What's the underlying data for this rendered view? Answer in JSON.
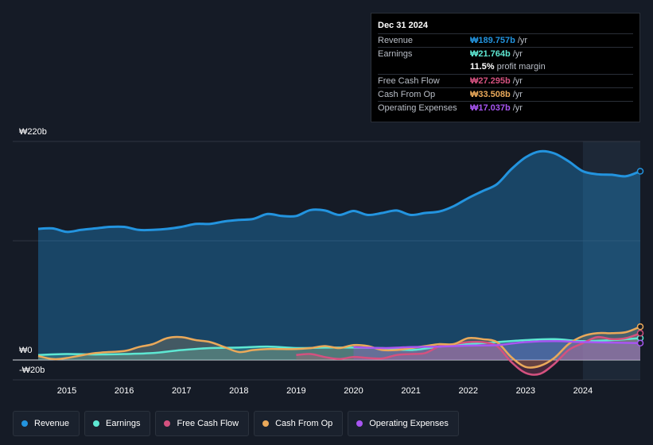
{
  "chart_data": {
    "type": "line",
    "title": "",
    "xlabel": "",
    "ylabel": "",
    "currency": "₩",
    "y_axis_labels": [
      "₩220b",
      "₩0",
      "-₩20b"
    ],
    "ylim": [
      -20,
      220
    ],
    "xlim": [
      2014.5,
      2025.0
    ],
    "x_ticks": [
      "2015",
      "2016",
      "2017",
      "2018",
      "2019",
      "2020",
      "2021",
      "2022",
      "2023",
      "2024"
    ],
    "x_tick_values": [
      2015,
      2016,
      2017,
      2018,
      2019,
      2020,
      2021,
      2022,
      2023,
      2024
    ],
    "highlight_start": 2024.0,
    "series": [
      {
        "name": "Revenue",
        "color": "#2394df",
        "points": [
          [
            2014.5,
            132
          ],
          [
            2014.75,
            132.5
          ],
          [
            2015.0,
            129
          ],
          [
            2015.25,
            131
          ],
          [
            2015.5,
            132.5
          ],
          [
            2015.75,
            134
          ],
          [
            2016.0,
            134
          ],
          [
            2016.25,
            131
          ],
          [
            2016.5,
            131
          ],
          [
            2016.75,
            132
          ],
          [
            2017.0,
            134
          ],
          [
            2017.25,
            137
          ],
          [
            2017.5,
            137
          ],
          [
            2017.75,
            139.5
          ],
          [
            2018.0,
            141
          ],
          [
            2018.25,
            142
          ],
          [
            2018.5,
            147
          ],
          [
            2018.75,
            145
          ],
          [
            2019.0,
            145
          ],
          [
            2019.25,
            151
          ],
          [
            2019.5,
            150.5
          ],
          [
            2019.75,
            146
          ],
          [
            2020.0,
            150
          ],
          [
            2020.25,
            146
          ],
          [
            2020.5,
            148
          ],
          [
            2020.75,
            150.5
          ],
          [
            2021.0,
            146
          ],
          [
            2021.25,
            148
          ],
          [
            2021.5,
            149.5
          ],
          [
            2021.75,
            155
          ],
          [
            2022.0,
            163
          ],
          [
            2022.25,
            170
          ],
          [
            2022.5,
            177
          ],
          [
            2022.75,
            192
          ],
          [
            2023.0,
            204
          ],
          [
            2023.25,
            210
          ],
          [
            2023.5,
            208
          ],
          [
            2023.75,
            200
          ],
          [
            2024.0,
            190
          ],
          [
            2024.25,
            187
          ],
          [
            2024.5,
            186.5
          ],
          [
            2024.75,
            185
          ],
          [
            2025.0,
            190
          ]
        ]
      },
      {
        "name": "Earnings",
        "color": "#5ee8d3",
        "points": [
          [
            2014.5,
            5
          ],
          [
            2015.0,
            6
          ],
          [
            2015.5,
            5.5
          ],
          [
            2016.0,
            6
          ],
          [
            2016.5,
            7
          ],
          [
            2017.0,
            10
          ],
          [
            2017.5,
            12
          ],
          [
            2018.0,
            12.5
          ],
          [
            2018.5,
            13.5
          ],
          [
            2019.0,
            12
          ],
          [
            2019.5,
            12.5
          ],
          [
            2020.0,
            12.5
          ],
          [
            2020.5,
            12
          ],
          [
            2021.0,
            10
          ],
          [
            2021.5,
            13.5
          ],
          [
            2022.0,
            16
          ],
          [
            2022.5,
            18
          ],
          [
            2023.0,
            20
          ],
          [
            2023.5,
            21
          ],
          [
            2024.0,
            19
          ],
          [
            2024.5,
            20
          ],
          [
            2025.0,
            22
          ]
        ]
      },
      {
        "name": "Free Cash Flow",
        "color": "#d4517f",
        "points": [
          [
            2019.0,
            5
          ],
          [
            2019.25,
            6
          ],
          [
            2019.5,
            3
          ],
          [
            2019.75,
            1
          ],
          [
            2020.0,
            3
          ],
          [
            2020.25,
            2
          ],
          [
            2020.5,
            1.5
          ],
          [
            2020.75,
            5
          ],
          [
            2021.0,
            6
          ],
          [
            2021.25,
            7
          ],
          [
            2021.5,
            14
          ],
          [
            2021.75,
            16
          ],
          [
            2022.0,
            18
          ],
          [
            2022.25,
            18
          ],
          [
            2022.5,
            14
          ],
          [
            2022.75,
            -2
          ],
          [
            2023.0,
            -13
          ],
          [
            2023.25,
            -14
          ],
          [
            2023.5,
            -4
          ],
          [
            2023.75,
            10
          ],
          [
            2024.0,
            17
          ],
          [
            2024.25,
            23
          ],
          [
            2024.5,
            21
          ],
          [
            2024.75,
            22
          ],
          [
            2025.0,
            27
          ]
        ]
      },
      {
        "name": "Cash From Op",
        "color": "#eaa95a",
        "points": [
          [
            2014.5,
            4
          ],
          [
            2014.75,
            1
          ],
          [
            2015.0,
            2
          ],
          [
            2015.5,
            7
          ],
          [
            2016.0,
            9
          ],
          [
            2016.25,
            13
          ],
          [
            2016.5,
            16
          ],
          [
            2016.75,
            22
          ],
          [
            2017.0,
            23
          ],
          [
            2017.25,
            20
          ],
          [
            2017.5,
            18
          ],
          [
            2017.75,
            13
          ],
          [
            2018.0,
            8
          ],
          [
            2018.25,
            10
          ],
          [
            2018.5,
            11
          ],
          [
            2018.75,
            11
          ],
          [
            2019.0,
            11
          ],
          [
            2019.25,
            12
          ],
          [
            2019.5,
            14
          ],
          [
            2019.75,
            12
          ],
          [
            2020.0,
            15
          ],
          [
            2020.25,
            14
          ],
          [
            2020.5,
            10
          ],
          [
            2020.75,
            10
          ],
          [
            2021.0,
            12
          ],
          [
            2021.25,
            14
          ],
          [
            2021.5,
            16
          ],
          [
            2021.75,
            16
          ],
          [
            2022.0,
            22
          ],
          [
            2022.25,
            21
          ],
          [
            2022.5,
            18
          ],
          [
            2022.75,
            3
          ],
          [
            2023.0,
            -7
          ],
          [
            2023.25,
            -6
          ],
          [
            2023.5,
            2
          ],
          [
            2023.75,
            16
          ],
          [
            2024.0,
            24
          ],
          [
            2024.25,
            27
          ],
          [
            2024.5,
            27
          ],
          [
            2024.75,
            28
          ],
          [
            2025.0,
            33.5
          ]
        ]
      },
      {
        "name": "Operating Expenses",
        "color": "#a855f2",
        "points": [
          [
            2020.0,
            13
          ],
          [
            2020.5,
            12
          ],
          [
            2021.0,
            13
          ],
          [
            2021.5,
            13.5
          ],
          [
            2022.0,
            14.5
          ],
          [
            2022.5,
            15
          ],
          [
            2023.0,
            18
          ],
          [
            2023.5,
            19
          ],
          [
            2024.0,
            18
          ],
          [
            2024.5,
            17.5
          ],
          [
            2025.0,
            17
          ]
        ]
      }
    ]
  },
  "tooltip": {
    "date": "Dec 31 2024",
    "rows": [
      {
        "label": "Revenue",
        "value": "₩189.757b",
        "unit": "/yr",
        "color": "#2394df"
      },
      {
        "label": "Earnings",
        "value": "₩21.764b",
        "unit": "/yr",
        "color": "#5ee8d3"
      },
      {
        "label": "",
        "value": "11.5%",
        "unit": "profit margin",
        "color": "#ffffff"
      },
      {
        "label": "Free Cash Flow",
        "value": "₩27.295b",
        "unit": "/yr",
        "color": "#d4517f"
      },
      {
        "label": "Cash From Op",
        "value": "₩33.508b",
        "unit": "/yr",
        "color": "#eaa95a"
      },
      {
        "label": "Operating Expenses",
        "value": "₩17.037b",
        "unit": "/yr",
        "color": "#a855f2"
      }
    ]
  },
  "legend": [
    {
      "label": "Revenue",
      "color": "#2394df"
    },
    {
      "label": "Earnings",
      "color": "#5ee8d3"
    },
    {
      "label": "Free Cash Flow",
      "color": "#d4517f"
    },
    {
      "label": "Cash From Op",
      "color": "#eaa95a"
    },
    {
      "label": "Operating Expenses",
      "color": "#a855f2"
    }
  ]
}
